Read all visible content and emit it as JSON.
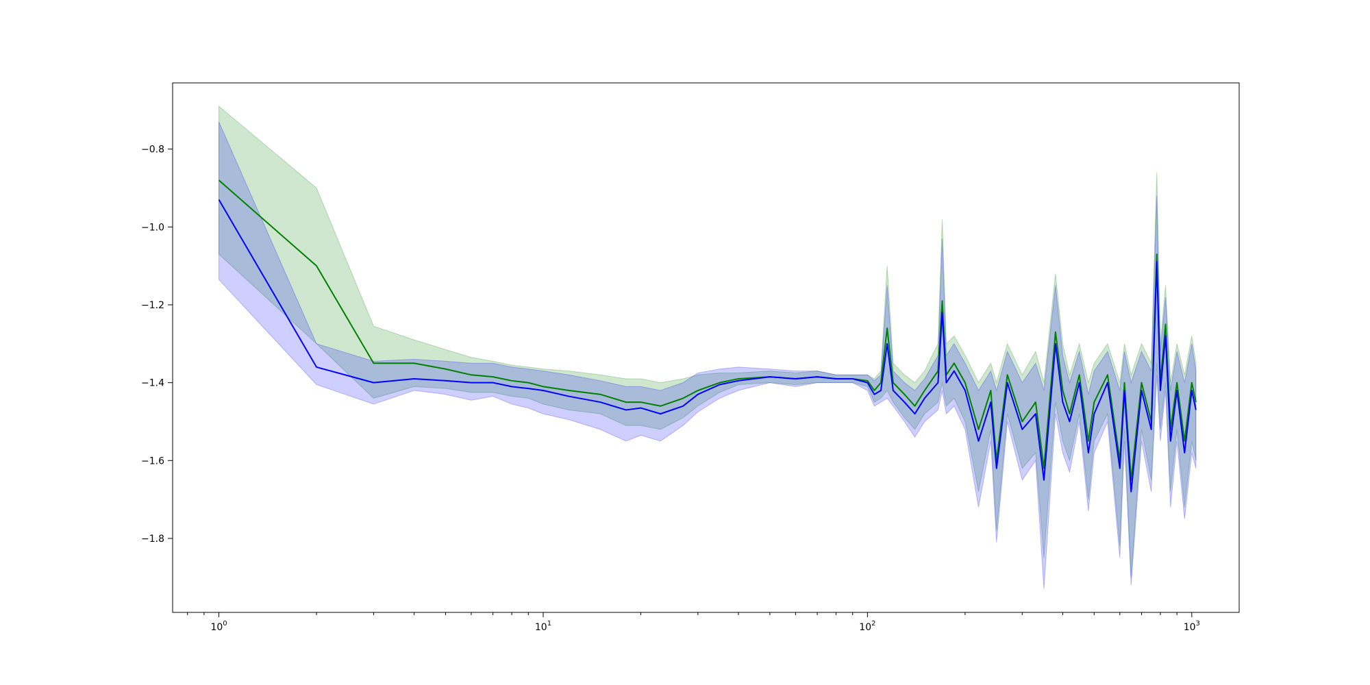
{
  "chart_data": {
    "type": "line",
    "title": "",
    "xlabel": "",
    "ylabel": "",
    "xscale": "log",
    "xlim": [
      0.72,
      1400
    ],
    "ylim": [
      -1.99,
      -0.63
    ],
    "grid": false,
    "legend": "none",
    "x_ticks": [
      {
        "value": 1,
        "base": "10",
        "exp": "0"
      },
      {
        "value": 10,
        "base": "10",
        "exp": "1"
      },
      {
        "value": 100,
        "base": "10",
        "exp": "2"
      },
      {
        "value": 1000,
        "base": "10",
        "exp": "3"
      }
    ],
    "y_ticks": [
      {
        "value": -0.8,
        "label": "−0.8"
      },
      {
        "value": -1.0,
        "label": "−1.0"
      },
      {
        "value": -1.2,
        "label": "−1.2"
      },
      {
        "value": -1.4,
        "label": "−1.4"
      },
      {
        "value": -1.6,
        "label": "−1.6"
      },
      {
        "value": -1.8,
        "label": "−1.8"
      }
    ],
    "series": [
      {
        "color": "#008000",
        "band_color": "#008000",
        "band_opacity": 0.19,
        "x": [
          1,
          2,
          3,
          4,
          5,
          6,
          7,
          8,
          9,
          10,
          12,
          15,
          18,
          20,
          23,
          27,
          30,
          35,
          40,
          50,
          60,
          70,
          80,
          90,
          100,
          105,
          110,
          115,
          120,
          130,
          140,
          150,
          165,
          170,
          175,
          185,
          200,
          220,
          240,
          250,
          270,
          300,
          330,
          350,
          380,
          400,
          420,
          450,
          480,
          500,
          550,
          600,
          620,
          650,
          700,
          750,
          780,
          800,
          830,
          860,
          900,
          950,
          1000,
          1030
        ],
        "mean": [
          -0.88,
          -1.1,
          -1.35,
          -1.35,
          -1.365,
          -1.38,
          -1.385,
          -1.395,
          -1.4,
          -1.41,
          -1.42,
          -1.43,
          -1.45,
          -1.45,
          -1.46,
          -1.44,
          -1.42,
          -1.4,
          -1.39,
          -1.385,
          -1.39,
          -1.385,
          -1.39,
          -1.39,
          -1.395,
          -1.42,
          -1.4,
          -1.26,
          -1.4,
          -1.43,
          -1.46,
          -1.42,
          -1.37,
          -1.19,
          -1.38,
          -1.35,
          -1.4,
          -1.52,
          -1.42,
          -1.6,
          -1.38,
          -1.5,
          -1.45,
          -1.62,
          -1.27,
          -1.42,
          -1.48,
          -1.38,
          -1.55,
          -1.45,
          -1.38,
          -1.6,
          -1.4,
          -1.65,
          -1.4,
          -1.5,
          -1.07,
          -1.4,
          -1.25,
          -1.52,
          -1.4,
          -1.55,
          -1.4,
          -1.45
        ],
        "upper": [
          -0.69,
          -0.9,
          -1.255,
          -1.29,
          -1.315,
          -1.335,
          -1.345,
          -1.355,
          -1.36,
          -1.365,
          -1.37,
          -1.38,
          -1.39,
          -1.39,
          -1.4,
          -1.39,
          -1.38,
          -1.375,
          -1.375,
          -1.37,
          -1.375,
          -1.37,
          -1.38,
          -1.38,
          -1.38,
          -1.39,
          -1.37,
          -1.1,
          -1.35,
          -1.38,
          -1.4,
          -1.37,
          -1.3,
          -0.98,
          -1.3,
          -1.28,
          -1.33,
          -1.4,
          -1.35,
          -1.4,
          -1.3,
          -1.38,
          -1.32,
          -1.4,
          -1.12,
          -1.3,
          -1.38,
          -1.3,
          -1.4,
          -1.35,
          -1.3,
          -1.4,
          -1.3,
          -1.38,
          -1.3,
          -1.35,
          -0.86,
          -1.3,
          -1.15,
          -1.4,
          -1.3,
          -1.38,
          -1.28,
          -1.35
        ],
        "lower": [
          -1.07,
          -1.3,
          -1.44,
          -1.41,
          -1.415,
          -1.425,
          -1.425,
          -1.435,
          -1.44,
          -1.455,
          -1.47,
          -1.48,
          -1.51,
          -1.51,
          -1.52,
          -1.49,
          -1.46,
          -1.425,
          -1.405,
          -1.4,
          -1.405,
          -1.4,
          -1.4,
          -1.4,
          -1.41,
          -1.45,
          -1.44,
          -1.42,
          -1.45,
          -1.49,
          -1.52,
          -1.48,
          -1.45,
          -1.4,
          -1.46,
          -1.44,
          -1.5,
          -1.68,
          -1.52,
          -1.78,
          -1.48,
          -1.62,
          -1.58,
          -1.85,
          -1.45,
          -1.55,
          -1.6,
          -1.48,
          -1.7,
          -1.55,
          -1.48,
          -1.82,
          -1.52,
          -1.9,
          -1.52,
          -1.65,
          -1.35,
          -1.52,
          -1.4,
          -1.68,
          -1.52,
          -1.72,
          -1.55,
          -1.6
        ]
      },
      {
        "color": "#0000ff",
        "band_color": "#0000ff",
        "band_opacity": 0.19,
        "x": [
          1,
          2,
          3,
          4,
          5,
          6,
          7,
          8,
          9,
          10,
          12,
          15,
          18,
          20,
          23,
          27,
          30,
          35,
          40,
          50,
          60,
          70,
          80,
          90,
          100,
          105,
          110,
          115,
          120,
          130,
          140,
          150,
          165,
          170,
          175,
          185,
          200,
          220,
          240,
          250,
          270,
          300,
          330,
          350,
          380,
          400,
          420,
          450,
          480,
          500,
          550,
          600,
          620,
          650,
          700,
          750,
          780,
          800,
          830,
          860,
          900,
          950,
          1000,
          1030
        ],
        "mean": [
          -0.93,
          -1.36,
          -1.4,
          -1.39,
          -1.395,
          -1.4,
          -1.4,
          -1.41,
          -1.415,
          -1.42,
          -1.435,
          -1.45,
          -1.47,
          -1.465,
          -1.48,
          -1.46,
          -1.43,
          -1.405,
          -1.395,
          -1.385,
          -1.39,
          -1.385,
          -1.39,
          -1.39,
          -1.4,
          -1.43,
          -1.42,
          -1.3,
          -1.42,
          -1.45,
          -1.48,
          -1.44,
          -1.4,
          -1.22,
          -1.4,
          -1.37,
          -1.42,
          -1.55,
          -1.45,
          -1.62,
          -1.4,
          -1.52,
          -1.48,
          -1.65,
          -1.3,
          -1.45,
          -1.5,
          -1.4,
          -1.58,
          -1.48,
          -1.4,
          -1.62,
          -1.42,
          -1.68,
          -1.42,
          -1.52,
          -1.09,
          -1.42,
          -1.28,
          -1.55,
          -1.42,
          -1.58,
          -1.42,
          -1.47
        ],
        "upper": [
          -0.73,
          -1.3,
          -1.345,
          -1.34,
          -1.345,
          -1.35,
          -1.35,
          -1.36,
          -1.365,
          -1.37,
          -1.38,
          -1.395,
          -1.41,
          -1.41,
          -1.42,
          -1.4,
          -1.375,
          -1.365,
          -1.36,
          -1.365,
          -1.37,
          -1.37,
          -1.38,
          -1.38,
          -1.38,
          -1.395,
          -1.38,
          -1.15,
          -1.37,
          -1.4,
          -1.42,
          -1.39,
          -1.33,
          -1.03,
          -1.33,
          -1.3,
          -1.35,
          -1.42,
          -1.37,
          -1.42,
          -1.32,
          -1.4,
          -1.35,
          -1.42,
          -1.15,
          -1.33,
          -1.4,
          -1.32,
          -1.43,
          -1.37,
          -1.32,
          -1.42,
          -1.32,
          -1.4,
          -1.32,
          -1.37,
          -0.92,
          -1.32,
          -1.18,
          -1.42,
          -1.32,
          -1.4,
          -1.3,
          -1.37
        ],
        "lower": [
          -1.135,
          -1.405,
          -1.455,
          -1.42,
          -1.43,
          -1.445,
          -1.435,
          -1.455,
          -1.465,
          -1.48,
          -1.495,
          -1.52,
          -1.55,
          -1.535,
          -1.55,
          -1.51,
          -1.475,
          -1.44,
          -1.42,
          -1.4,
          -1.41,
          -1.4,
          -1.4,
          -1.4,
          -1.42,
          -1.46,
          -1.45,
          -1.44,
          -1.46,
          -1.5,
          -1.54,
          -1.5,
          -1.47,
          -1.42,
          -1.48,
          -1.46,
          -1.52,
          -1.72,
          -1.55,
          -1.81,
          -1.5,
          -1.65,
          -1.6,
          -1.93,
          -1.48,
          -1.58,
          -1.63,
          -1.5,
          -1.73,
          -1.58,
          -1.5,
          -1.85,
          -1.55,
          -1.92,
          -1.55,
          -1.68,
          -1.38,
          -1.55,
          -1.42,
          -1.72,
          -1.55,
          -1.75,
          -1.58,
          -1.62
        ]
      }
    ]
  }
}
